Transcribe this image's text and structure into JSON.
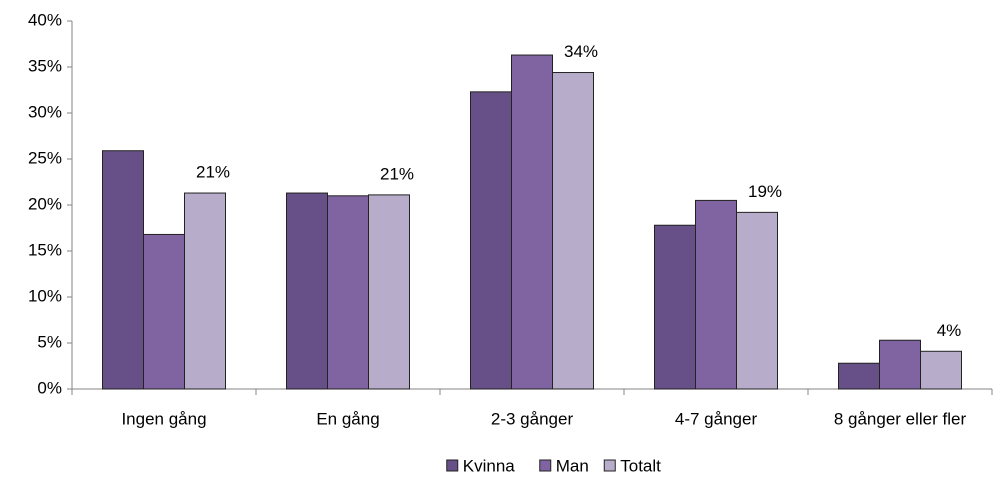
{
  "chart_data": {
    "type": "bar",
    "categories": [
      "Ingen gång",
      "En gång",
      "2-3 gånger",
      "4-7 gånger",
      "8 gånger eller fler"
    ],
    "series": [
      {
        "name": "Kvinna",
        "color": "#674f87",
        "values": [
          25.9,
          21.3,
          32.3,
          17.8,
          2.8
        ]
      },
      {
        "name": "Man",
        "color": "#8064a2",
        "values": [
          16.8,
          21.0,
          36.3,
          20.5,
          5.3
        ]
      },
      {
        "name": "Totalt",
        "color": "#b8accb",
        "values": [
          21.3,
          21.1,
          34.4,
          19.2,
          4.1
        ],
        "value_labels": [
          "21%",
          "21%",
          "34%",
          "19%",
          "4%"
        ]
      }
    ],
    "ylim": [
      0,
      40
    ],
    "yticks": [
      {
        "value": 0,
        "label": "0%"
      },
      {
        "value": 5,
        "label": "5%"
      },
      {
        "value": 10,
        "label": "10%"
      },
      {
        "value": 15,
        "label": "15%"
      },
      {
        "value": 20,
        "label": "20%"
      },
      {
        "value": 25,
        "label": "25%"
      },
      {
        "value": 30,
        "label": "30%"
      },
      {
        "value": 35,
        "label": "35%"
      },
      {
        "value": 40,
        "label": "40%"
      }
    ],
    "grid": false,
    "legend": "bottom"
  }
}
